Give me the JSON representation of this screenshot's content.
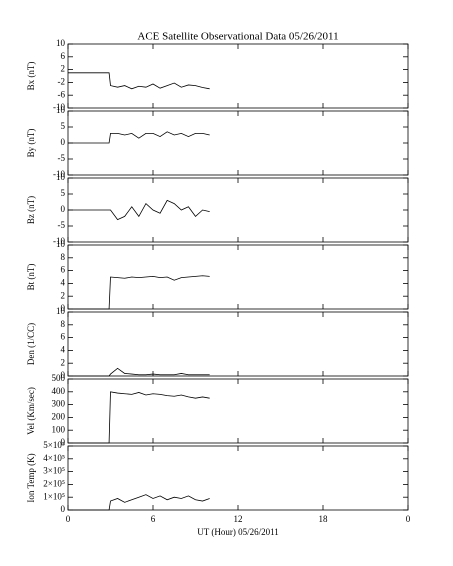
{
  "title": "ACE Satellite Observational Data   05/26/2011",
  "chart_data": [
    {
      "type": "line",
      "ylabel": "Bx (nT)",
      "xlim": [
        0,
        24
      ],
      "ylim": [
        -10,
        10
      ],
      "yticks": [
        10,
        6,
        2,
        -2,
        -6,
        -10
      ],
      "x": [
        0,
        2.9,
        3,
        3.5,
        4,
        4.5,
        5,
        5.5,
        6,
        6.5,
        7,
        7.5,
        8,
        8.5,
        9,
        9.5,
        10
      ],
      "series": [
        {
          "color": "#000000",
          "values": [
            1,
            1,
            -3,
            -3.5,
            -3,
            -4,
            -3.2,
            -3.5,
            -2.5,
            -3.8,
            -3,
            -2.2,
            -3.5,
            -2.8,
            -3,
            -3.6,
            -4
          ]
        }
      ]
    },
    {
      "type": "line",
      "ylabel": "By (nT)",
      "xlim": [
        0,
        24
      ],
      "ylim": [
        -10,
        10
      ],
      "yticks": [
        10,
        5,
        0,
        -5,
        -10
      ],
      "x": [
        0,
        2.9,
        3,
        3.5,
        4,
        4.5,
        5,
        5.5,
        6,
        6.5,
        7,
        7.5,
        8,
        8.5,
        9,
        9.5,
        10
      ],
      "series": [
        {
          "color": "#000000",
          "values": [
            0,
            0,
            3,
            3,
            2.5,
            3,
            1.5,
            3,
            3,
            2,
            3.5,
            2.5,
            3,
            2,
            3,
            3,
            2.5
          ]
        }
      ]
    },
    {
      "type": "line",
      "ylabel": "Bz (nT)",
      "xlim": [
        0,
        24
      ],
      "ylim": [
        -10,
        10
      ],
      "yticks": [
        10,
        5,
        0,
        -5,
        -10
      ],
      "x": [
        0,
        2.9,
        3,
        3.5,
        4,
        4.5,
        5,
        5.5,
        6,
        6.5,
        7,
        7.5,
        8,
        8.5,
        9,
        9.5,
        10
      ],
      "series": [
        {
          "color": "#000000",
          "values": [
            0,
            0,
            0,
            -3,
            -2,
            1,
            -2,
            2,
            0,
            -1,
            3,
            2,
            0,
            1,
            -2,
            0,
            -0.5
          ]
        }
      ]
    },
    {
      "type": "line",
      "ylabel": "Bt (nT)",
      "xlim": [
        0,
        24
      ],
      "ylim": [
        0,
        10
      ],
      "yticks": [
        10,
        8,
        6,
        4,
        2,
        0
      ],
      "x": [
        0,
        2.9,
        3,
        3.5,
        4,
        4.5,
        5,
        5.5,
        6,
        6.5,
        7,
        7.5,
        8,
        8.5,
        9,
        9.5,
        10
      ],
      "series": [
        {
          "color": "#000000",
          "values": [
            0,
            0,
            5,
            4.9,
            4.8,
            5,
            4.9,
            5,
            5.1,
            4.9,
            5,
            4.5,
            4.9,
            5,
            5.1,
            5.2,
            5.1
          ]
        }
      ]
    },
    {
      "type": "line",
      "ylabel": "Den (1/CC)",
      "xlim": [
        0,
        24
      ],
      "ylim": [
        0,
        10
      ],
      "yticks": [
        10,
        8,
        6,
        4,
        2,
        0
      ],
      "x": [
        0,
        2.9,
        3,
        3.5,
        4,
        4.5,
        5,
        5.5,
        6,
        6.5,
        7,
        7.5,
        8,
        8.5,
        9,
        9.5,
        10
      ],
      "series": [
        {
          "color": "#000000",
          "values": [
            0,
            0,
            0.3,
            1.2,
            0.4,
            0.3,
            0.2,
            0.2,
            0.3,
            0.2,
            0.2,
            0.2,
            0.4,
            0.2,
            0.2,
            0.2,
            0.2
          ]
        }
      ]
    },
    {
      "type": "line",
      "ylabel": "Vel (Km/sec)",
      "xlim": [
        0,
        24
      ],
      "ylim": [
        0,
        500
      ],
      "yticks": [
        500,
        400,
        300,
        200,
        100,
        0
      ],
      "x": [
        0,
        2.9,
        3,
        3.5,
        4,
        4.5,
        5,
        5.5,
        6,
        6.5,
        7,
        7.5,
        8,
        8.5,
        9,
        9.5,
        10
      ],
      "series": [
        {
          "color": "#000000",
          "values": [
            0,
            0,
            400,
            390,
            385,
            380,
            395,
            375,
            385,
            380,
            370,
            365,
            375,
            360,
            350,
            360,
            350
          ]
        }
      ]
    },
    {
      "type": "line",
      "ylabel": "Ion Temp (K)",
      "xlabel": "UT (Hour)   05/26/2011",
      "xlim": [
        0,
        24
      ],
      "xticks": [
        0,
        6,
        12,
        18,
        {
          "value": 24,
          "label": "0"
        }
      ],
      "ylim": [
        0,
        500000
      ],
      "yticks": [
        {
          "value": 500000,
          "label": "5×10⁵"
        },
        {
          "value": 400000,
          "label": "4×10⁵"
        },
        {
          "value": 300000,
          "label": "3×10⁵"
        },
        {
          "value": 200000,
          "label": "2×10⁵"
        },
        {
          "value": 100000,
          "label": "1×10⁵"
        },
        0
      ],
      "x": [
        0,
        2.9,
        3,
        3.5,
        4,
        4.5,
        5,
        5.5,
        6,
        6.5,
        7,
        7.5,
        8,
        8.5,
        9,
        9.5,
        10
      ],
      "series": [
        {
          "color": "#000000",
          "values": [
            0,
            0,
            70000,
            90000,
            60000,
            80000,
            100000,
            120000,
            90000,
            110000,
            80000,
            100000,
            90000,
            110000,
            80000,
            70000,
            90000
          ]
        }
      ]
    }
  ]
}
